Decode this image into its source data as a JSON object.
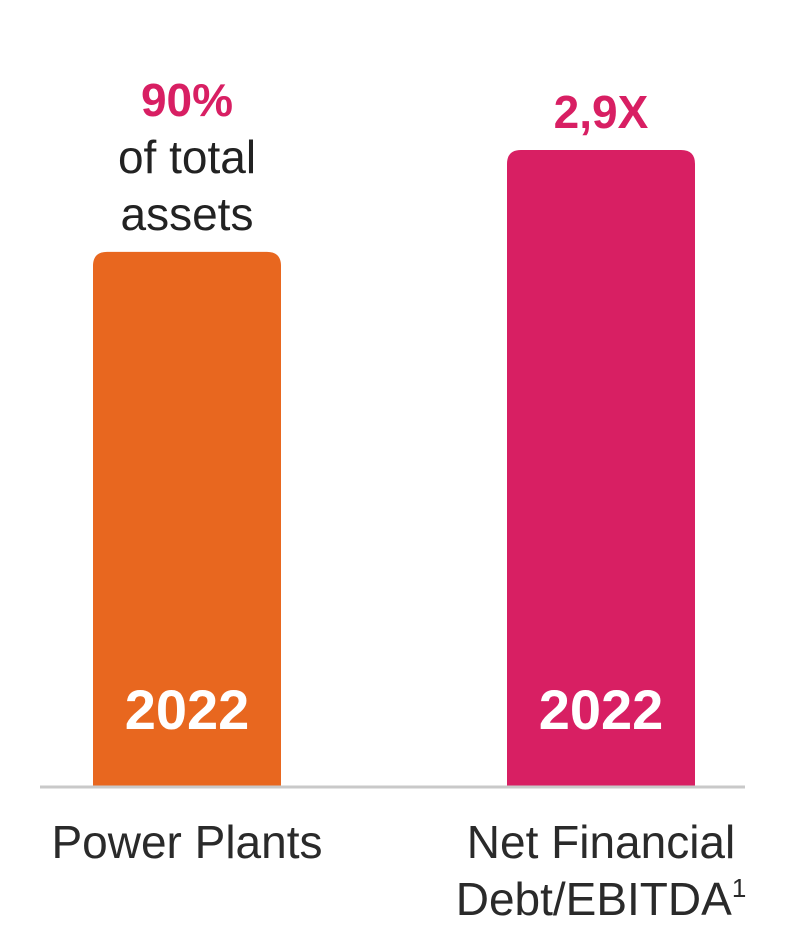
{
  "chart_data": {
    "type": "bar",
    "title": "",
    "xlabel": "",
    "ylabel": "",
    "grid": false,
    "legend": "none",
    "bars": [
      {
        "category_lines": [
          "Power Plants"
        ],
        "footnote": "",
        "value_text": "90%",
        "value_desc_lines": [
          "of total",
          "assets"
        ],
        "year": "2022",
        "fill_fraction": 0.84,
        "color": "#E8671F",
        "value_color": "#D81F63"
      },
      {
        "category_lines": [
          "Net Financial",
          "Debt/EBITDA"
        ],
        "footnote": "1",
        "value_text": "2,9X",
        "value_desc_lines": [],
        "year": "2022",
        "fill_fraction": 1.0,
        "color": "#D81F63",
        "value_color": "#D81F63"
      }
    ],
    "baseline_color": "#C9C9C9"
  }
}
